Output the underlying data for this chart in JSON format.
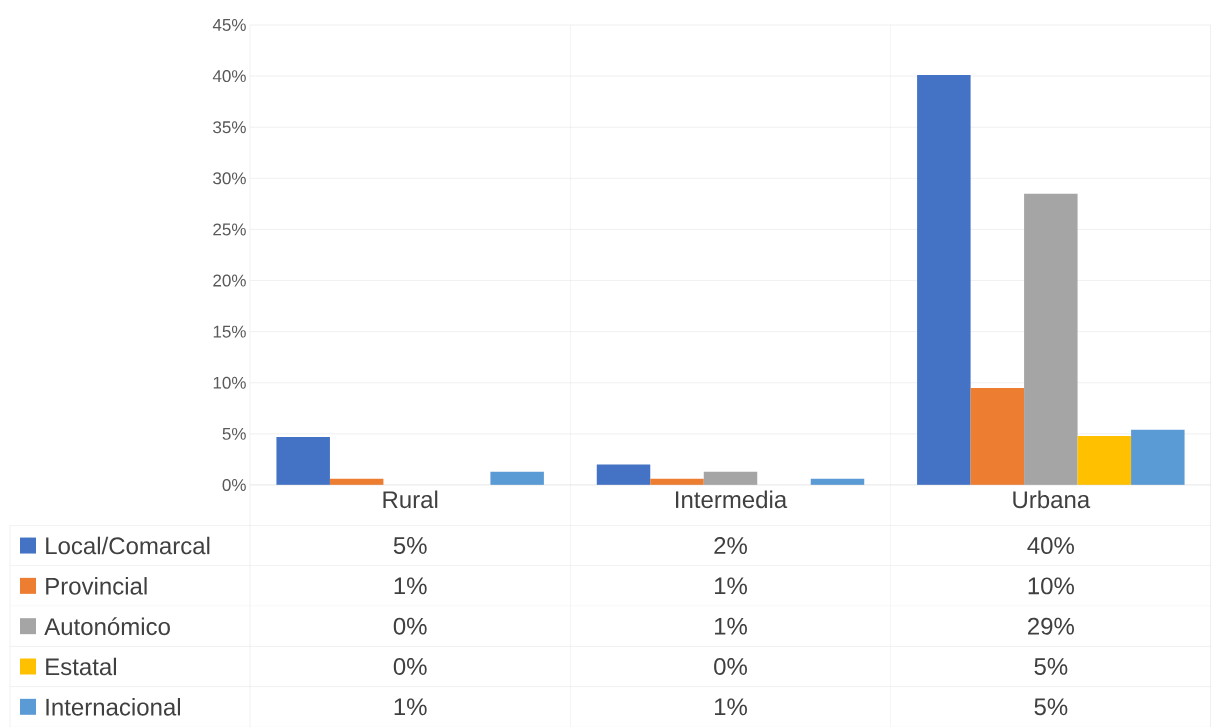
{
  "chart_data": {
    "type": "bar",
    "categories": [
      "Rural",
      "Intermedia",
      "Urbana"
    ],
    "series": [
      {
        "name": "Local/Comarcal",
        "color": "#4472c4",
        "values": [
          4.7,
          2.0,
          40.1
        ],
        "value_labels": [
          "5%",
          "2%",
          "40%"
        ]
      },
      {
        "name": "Provincial",
        "color": "#ed7d31",
        "values": [
          0.6,
          0.6,
          9.5
        ],
        "value_labels": [
          "1%",
          "1%",
          "10%"
        ]
      },
      {
        "name": "Autonómico",
        "color": "#a5a5a5",
        "values": [
          0,
          1.3,
          28.5
        ],
        "value_labels": [
          "0%",
          "1%",
          "29%"
        ]
      },
      {
        "name": "Estatal",
        "color": "#ffc000",
        "values": [
          0,
          0,
          4.8
        ],
        "value_labels": [
          "0%",
          "0%",
          "5%"
        ]
      },
      {
        "name": "Internacional",
        "color": "#5b9bd5",
        "values": [
          1.3,
          0.6,
          5.4
        ],
        "value_labels": [
          "1%",
          "1%",
          "5%"
        ]
      }
    ],
    "ylim": [
      0,
      45
    ],
    "yticks": [
      {
        "value": 0,
        "label": "0%"
      },
      {
        "value": 5,
        "label": "5%"
      },
      {
        "value": 10,
        "label": "10%"
      },
      {
        "value": 15,
        "label": "15%"
      },
      {
        "value": 20,
        "label": "20%"
      },
      {
        "value": 25,
        "label": "25%"
      },
      {
        "value": 30,
        "label": "30%"
      },
      {
        "value": 35,
        "label": "35%"
      },
      {
        "value": 40,
        "label": "40%"
      },
      {
        "value": 45,
        "label": "45%"
      }
    ],
    "grid": "y",
    "legend": "bottom"
  }
}
